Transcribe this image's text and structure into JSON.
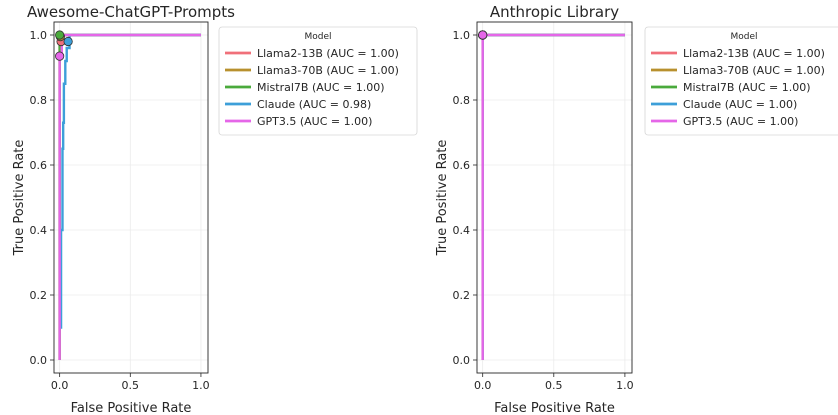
{
  "chart_data": [
    {
      "type": "line",
      "title": "Awesome-ChatGPT-Prompts",
      "xlabel": "False Positive Rate",
      "ylabel": "True Positive Rate",
      "xlim": [
        -0.04,
        1.05
      ],
      "ylim": [
        -0.04,
        1.04
      ],
      "x_ticks": [
        "0.0",
        "0.5",
        "1.0"
      ],
      "x_tick_values": [
        0,
        0.5,
        1
      ],
      "y_ticks": [
        "0.0",
        "0.2",
        "0.4",
        "0.6",
        "0.8",
        "1.0"
      ],
      "y_tick_values": [
        0,
        0.2,
        0.4,
        0.6,
        0.8,
        1.0
      ],
      "grid": true,
      "legend": {
        "title": "Model",
        "placement": "outside-right"
      },
      "series": [
        {
          "name": "Llama2-13B (AUC = 1.00)",
          "color": "#f0707a",
          "x": [
            0,
            0,
            0,
            0.01,
            0.01,
            1.0
          ],
          "y": [
            0,
            0.6,
            0.97,
            0.97,
            1.0,
            1.0
          ],
          "marker": [
            0.01,
            0.98
          ]
        },
        {
          "name": "Llama3-70B (AUC = 1.00)",
          "color": "#b8902e",
          "x": [
            0,
            0,
            0.005,
            0.005,
            1.0
          ],
          "y": [
            0,
            0.99,
            0.99,
            1.0,
            1.0
          ],
          "marker": [
            0.005,
            0.995
          ]
        },
        {
          "name": "Mistral7B (AUC = 1.00)",
          "color": "#4aaa3c",
          "x": [
            0,
            0,
            1.0
          ],
          "y": [
            0,
            1.0,
            1.0
          ],
          "marker": [
            0.0,
            1.0
          ]
        },
        {
          "name": "Claude (AUC = 0.98)",
          "color": "#3d9fd9",
          "x": [
            0,
            0.01,
            0.01,
            0.02,
            0.02,
            0.025,
            0.025,
            0.03,
            0.03,
            0.04,
            0.04,
            0.05,
            0.05,
            0.07,
            0.07,
            1.0
          ],
          "y": [
            0.1,
            0.1,
            0.4,
            0.4,
            0.65,
            0.65,
            0.73,
            0.73,
            0.85,
            0.85,
            0.92,
            0.92,
            0.96,
            0.96,
            1.0,
            1.0
          ],
          "marker": [
            0.06,
            0.98
          ]
        },
        {
          "name": "GPT3.5 (AUC = 1.00)",
          "color": "#e566e8",
          "x": [
            0,
            0,
            0.015,
            0.015,
            1.0
          ],
          "y": [
            0,
            0.93,
            0.93,
            1.0,
            1.0
          ],
          "marker": [
            0.0,
            0.935
          ]
        }
      ]
    },
    {
      "type": "line",
      "title": "Anthropic Library",
      "xlabel": "False Positive Rate",
      "ylabel": "True Positive Rate",
      "xlim": [
        -0.04,
        1.05
      ],
      "ylim": [
        -0.04,
        1.04
      ],
      "x_ticks": [
        "0.0",
        "0.5",
        "1.0"
      ],
      "x_tick_values": [
        0,
        0.5,
        1
      ],
      "y_ticks": [
        "0.0",
        "0.2",
        "0.4",
        "0.6",
        "0.8",
        "1.0"
      ],
      "y_tick_values": [
        0,
        0.2,
        0.4,
        0.6,
        0.8,
        1.0
      ],
      "grid": true,
      "legend": {
        "title": "Model",
        "placement": "outside-right"
      },
      "series": [
        {
          "name": "Llama2-13B (AUC = 1.00)",
          "color": "#f0707a",
          "x": [
            0,
            0,
            1.0
          ],
          "y": [
            0,
            1.0,
            1.0
          ],
          "marker": [
            0.0,
            1.0
          ]
        },
        {
          "name": "Llama3-70B (AUC = 1.00)",
          "color": "#b8902e",
          "x": [
            0,
            0,
            1.0
          ],
          "y": [
            0,
            1.0,
            1.0
          ],
          "marker": [
            0.0,
            1.0
          ]
        },
        {
          "name": "Mistral7B (AUC = 1.00)",
          "color": "#4aaa3c",
          "x": [
            0,
            0,
            1.0
          ],
          "y": [
            0,
            1.0,
            1.0
          ],
          "marker": [
            0.0,
            1.0
          ]
        },
        {
          "name": "Claude (AUC = 1.00)",
          "color": "#3d9fd9",
          "x": [
            0,
            0,
            1.0
          ],
          "y": [
            0,
            1.0,
            1.0
          ],
          "marker": [
            0.0,
            1.0
          ]
        },
        {
          "name": "GPT3.5 (AUC = 1.00)",
          "color": "#e566e8",
          "x": [
            0,
            0,
            1.0
          ],
          "y": [
            0,
            1.0,
            1.0
          ],
          "marker": [
            0.0,
            1.0
          ]
        }
      ]
    }
  ]
}
